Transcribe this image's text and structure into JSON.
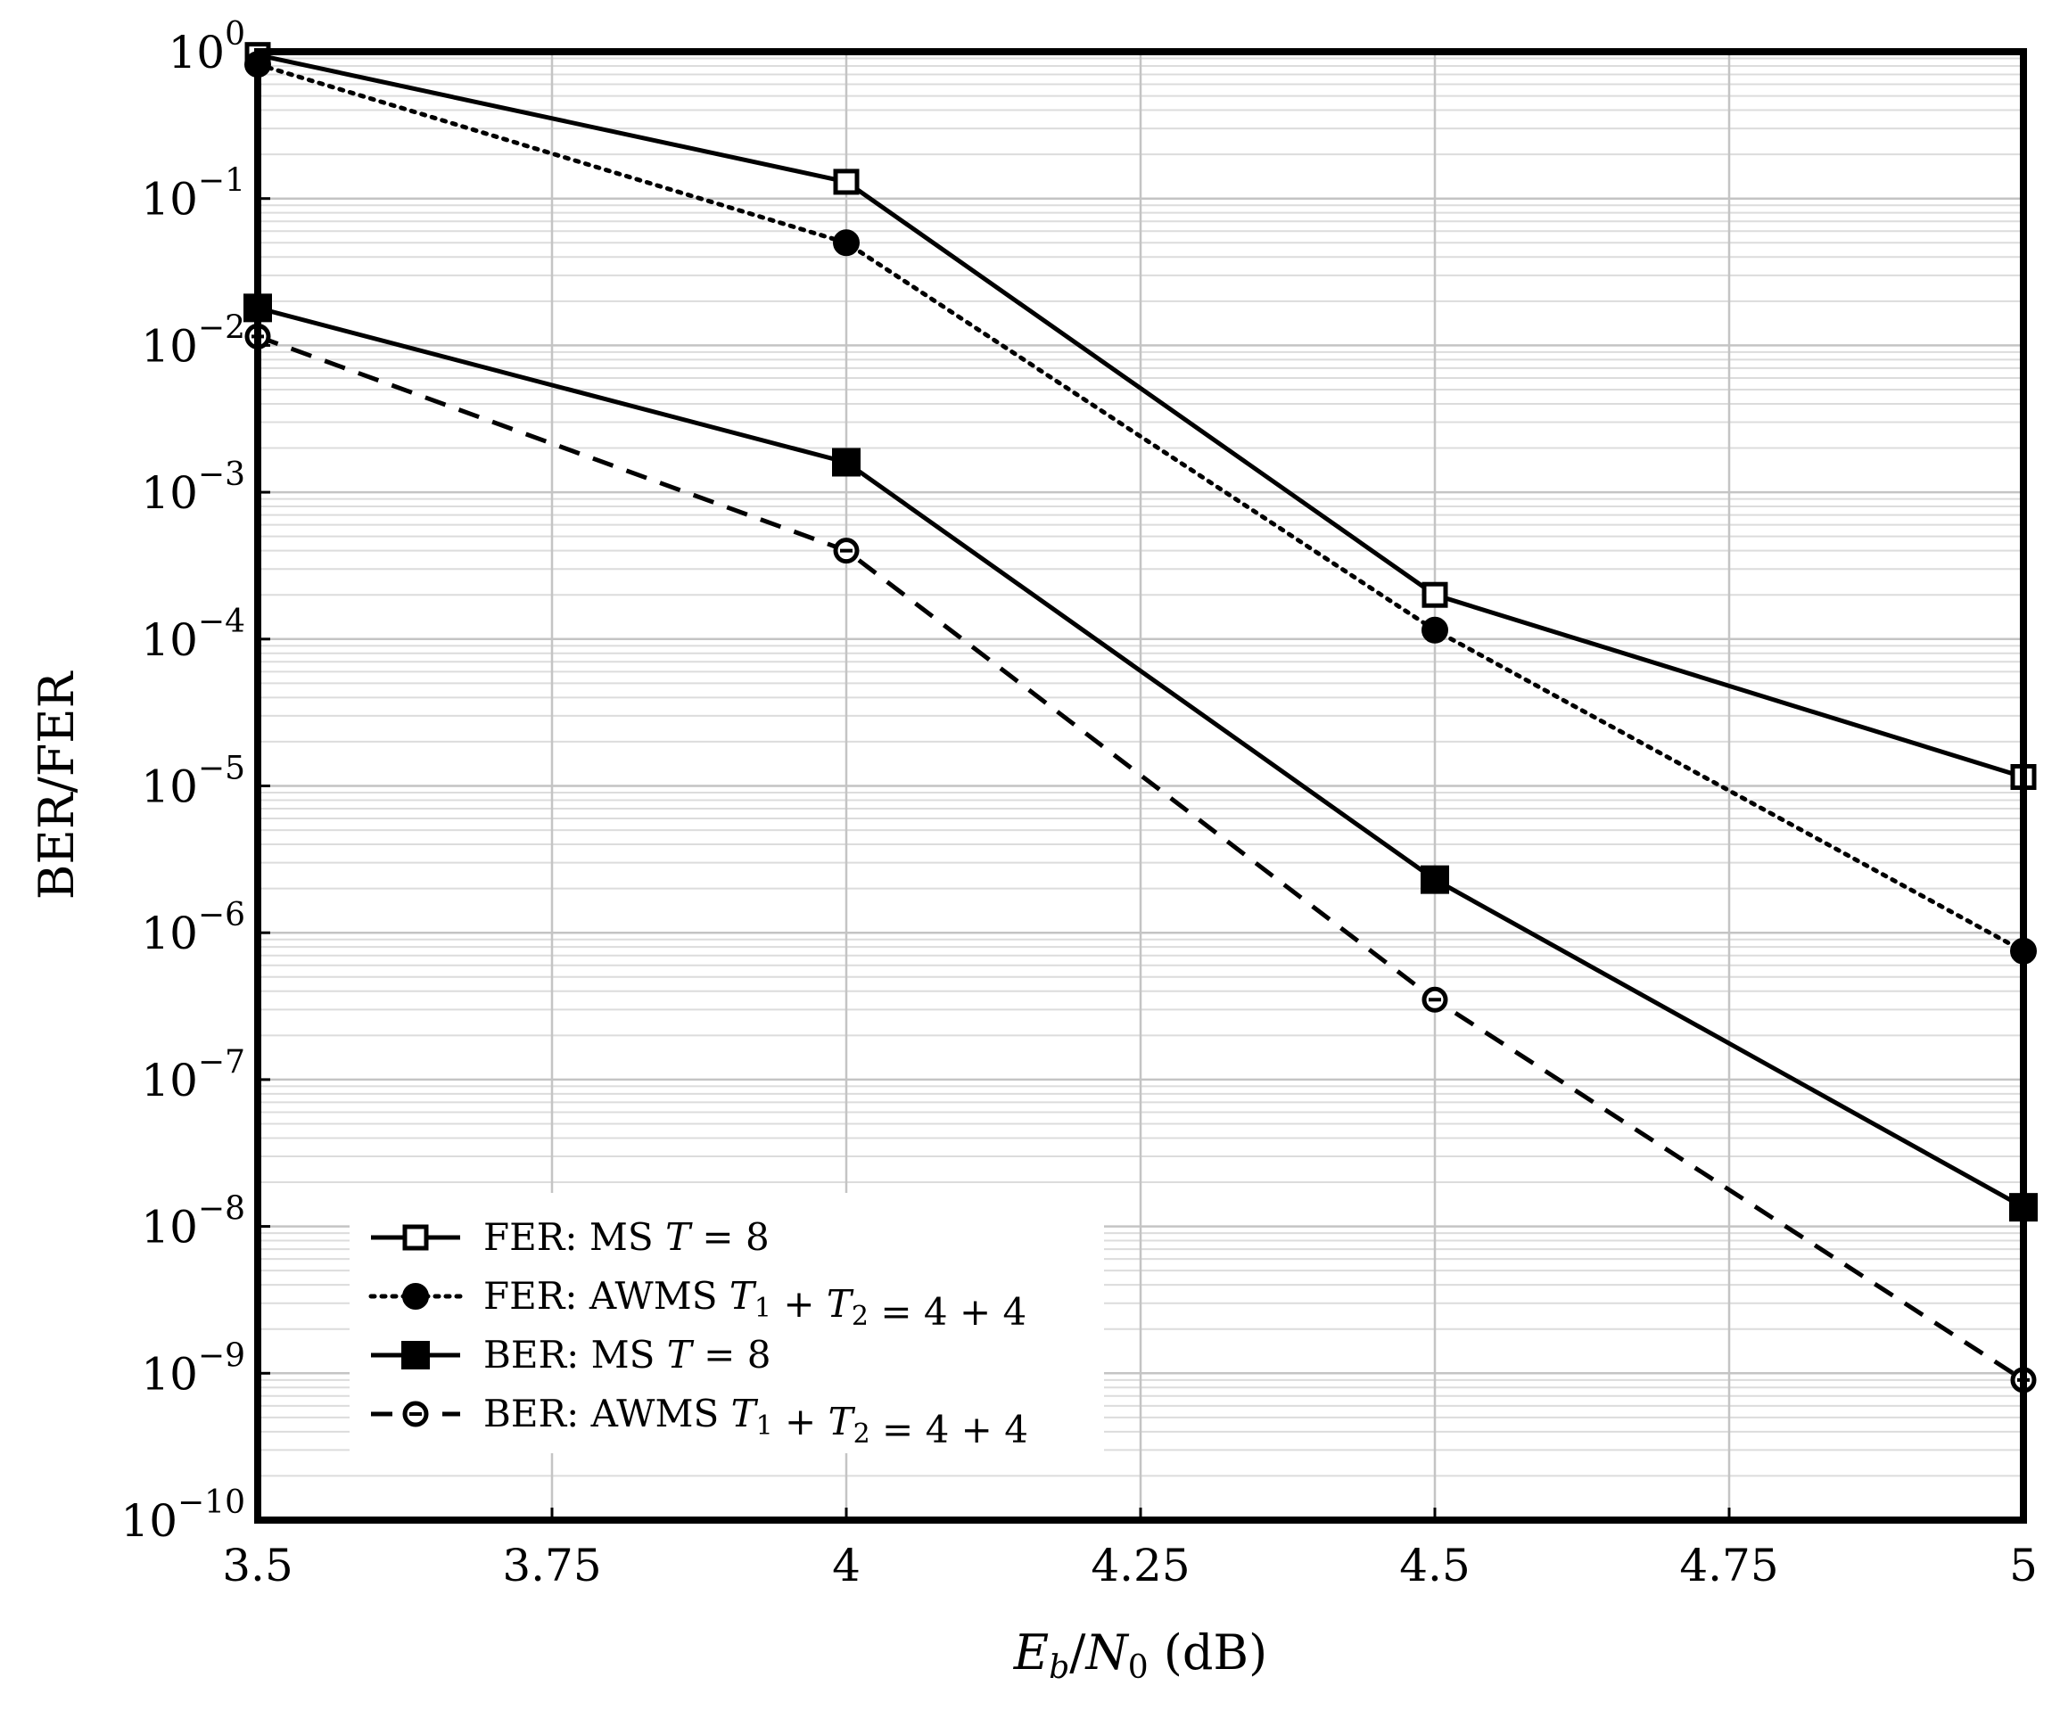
{
  "chart_data": {
    "type": "line",
    "title": "",
    "xlabel": "E_b/N_0 (dB)",
    "ylabel": "BER/FER",
    "xlim": [
      3.5,
      5
    ],
    "ylim": [
      1e-10,
      1
    ],
    "y_scale": "log",
    "grid": true,
    "x_ticks": [
      {
        "value": 3.5,
        "label": "3.5"
      },
      {
        "value": 3.75,
        "label": "3.75"
      },
      {
        "value": 4,
        "label": "4"
      },
      {
        "value": 4.25,
        "label": "4.25"
      },
      {
        "value": 4.5,
        "label": "4.5"
      },
      {
        "value": 4.75,
        "label": "4.75"
      },
      {
        "value": 5,
        "label": "5"
      }
    ],
    "y_ticks": [
      {
        "exp": 0,
        "base": "10",
        "power": "0"
      },
      {
        "exp": -1,
        "base": "10",
        "power": "−1"
      },
      {
        "exp": -2,
        "base": "10",
        "power": "−2"
      },
      {
        "exp": -3,
        "base": "10",
        "power": "−3"
      },
      {
        "exp": -4,
        "base": "10",
        "power": "−4"
      },
      {
        "exp": -5,
        "base": "10",
        "power": "−5"
      },
      {
        "exp": -6,
        "base": "10",
        "power": "−6"
      },
      {
        "exp": -7,
        "base": "10",
        "power": "−7"
      },
      {
        "exp": -8,
        "base": "10",
        "power": "−8"
      },
      {
        "exp": -9,
        "base": "10",
        "power": "−9"
      },
      {
        "exp": -10,
        "base": "10",
        "power": "−10"
      }
    ],
    "legend_position": "bottom-left",
    "series": [
      {
        "name": "FER: MS T = 8",
        "name_parts": [
          "FER: MS ",
          "T",
          "",
          " = 8"
        ],
        "marker": "square-open",
        "line": "solid",
        "color": "#000000",
        "x": [
          3.5,
          4,
          4.5,
          5
        ],
        "y": [
          0.95,
          0.13,
          0.0002,
          1.15e-05
        ]
      },
      {
        "name": "FER: AWMS T1 + T2 = 4 + 4",
        "name_parts": [
          "FER: AWMS ",
          "T",
          "1",
          " + ",
          "T",
          "2",
          " = 4 + 4"
        ],
        "marker": "circle-filled",
        "line": "dotted",
        "color": "#000000",
        "x": [
          3.5,
          4,
          4.5,
          5
        ],
        "y": [
          0.82,
          0.05,
          0.000115,
          7.5e-07
        ]
      },
      {
        "name": "BER: MS T = 8",
        "name_parts": [
          "BER: MS ",
          "T",
          "",
          " = 8"
        ],
        "marker": "square-filled",
        "line": "solid",
        "color": "#000000",
        "x": [
          3.5,
          4,
          4.5,
          5
        ],
        "y": [
          0.018,
          0.0016,
          2.3e-06,
          1.35e-08
        ]
      },
      {
        "name": "BER: AWMS T1 + T2 = 4 + 4",
        "name_parts": [
          "BER: AWMS ",
          "T",
          "1",
          " + ",
          "T",
          "2",
          " = 4 + 4"
        ],
        "marker": "circle-open",
        "line": "dashed",
        "color": "#000000",
        "x": [
          3.5,
          4,
          4.5,
          5
        ],
        "y": [
          0.0115,
          0.0004,
          3.5e-07,
          9e-10
        ]
      }
    ]
  }
}
